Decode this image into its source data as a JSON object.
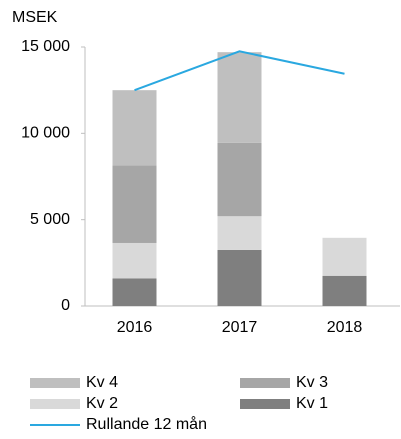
{
  "chart_data": {
    "type": "bar",
    "stacked": true,
    "y_axis_label": "MSEK",
    "categories": [
      "2016",
      "2017",
      "2018"
    ],
    "series": [
      {
        "name": "Kv 1",
        "color": "#7f7f7f",
        "values": [
          1600,
          3250,
          1750
        ]
      },
      {
        "name": "Kv 2",
        "color": "#d9d9d9",
        "values": [
          2050,
          1950,
          2200
        ]
      },
      {
        "name": "Kv 3",
        "color": "#a6a6a6",
        "values": [
          4500,
          4250,
          null
        ]
      },
      {
        "name": "Kv 4",
        "color": "#bfbfbf",
        "values": [
          4350,
          5250,
          null
        ]
      },
      {
        "name": "Rullande 12 mån",
        "type": "line",
        "color": "#2aa8e0",
        "values": [
          12500,
          14750,
          13450
        ]
      }
    ],
    "ylim": [
      0,
      15000
    ],
    "yticks": [
      0,
      {
        "value": 5000,
        "label": "5 000"
      },
      {
        "value": 10000,
        "label": "10 000"
      },
      {
        "value": 15000,
        "label": "15 000"
      }
    ],
    "grid": false
  }
}
